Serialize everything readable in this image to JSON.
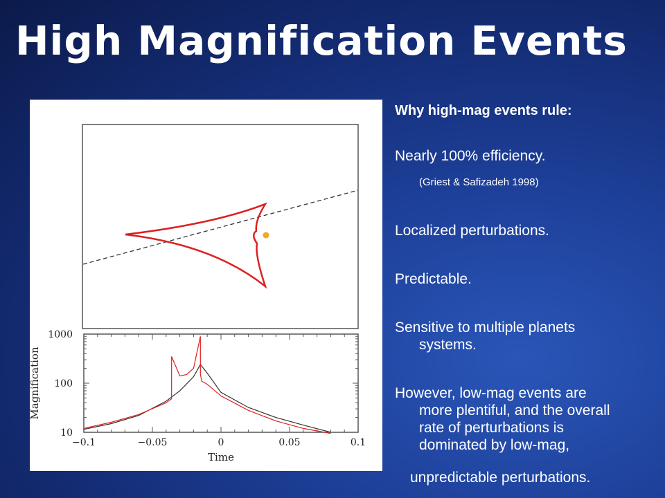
{
  "slide": {
    "title": "High Magnification Events"
  },
  "bullets": {
    "heading": "Why high-mag events rule:",
    "efficiency": "Nearly 100% efficiency.",
    "citation": "(Griest & Safizadeh 1998)",
    "localized": "Localized perturbations.",
    "predictable": "Predictable.",
    "sensitive_line1": "Sensitive to multiple planets",
    "sensitive_line2": "systems.",
    "however_line1": "However, low-mag events are",
    "however_line2": "more plentiful, and the overall",
    "however_line3": "rate of perturbations is",
    "however_line4": "dominated by low-mag,",
    "however_line5": "unpredictable perturbations."
  },
  "figure": {
    "colors": {
      "caustic": "#dd2020",
      "source_dot": "#f5a623",
      "trajectory": "#333333",
      "single_lens_curve": "#333333",
      "planet_curve": "#dd2020"
    },
    "top_panel": {
      "content": "caustic-with-source-trajectory"
    }
  },
  "chart_data": {
    "type": "line",
    "xlabel": "Time",
    "ylabel": "Magnification",
    "xlim": [
      -0.1,
      0.1
    ],
    "ylim": [
      10,
      1000
    ],
    "yscale": "log",
    "x_ticks": [
      "−0.1",
      "−0.05",
      "0",
      "0.05",
      "0.1"
    ],
    "y_ticks": [
      "10",
      "100",
      "1000"
    ],
    "grid": false,
    "series": [
      {
        "color": "#333333",
        "x": [
          -0.1,
          -0.08,
          -0.06,
          -0.04,
          -0.03,
          -0.02,
          -0.015,
          -0.01,
          0.0,
          0.02,
          0.04,
          0.06,
          0.08
        ],
        "y": [
          11.5,
          15,
          22,
          43,
          70,
          135,
          240,
          160,
          65,
          32,
          20,
          14,
          10
        ]
      },
      {
        "color": "#dd2020",
        "x": [
          -0.1,
          -0.08,
          -0.06,
          -0.04,
          -0.036,
          -0.036,
          -0.03,
          -0.025,
          -0.02,
          -0.015,
          -0.015,
          -0.014,
          -0.01,
          0.0,
          0.02,
          0.04,
          0.06,
          0.08
        ],
        "y": [
          12,
          16,
          23,
          40,
          48,
          350,
          140,
          150,
          200,
          900,
          150,
          110,
          95,
          55,
          28,
          17,
          12,
          9.5
        ]
      }
    ]
  }
}
